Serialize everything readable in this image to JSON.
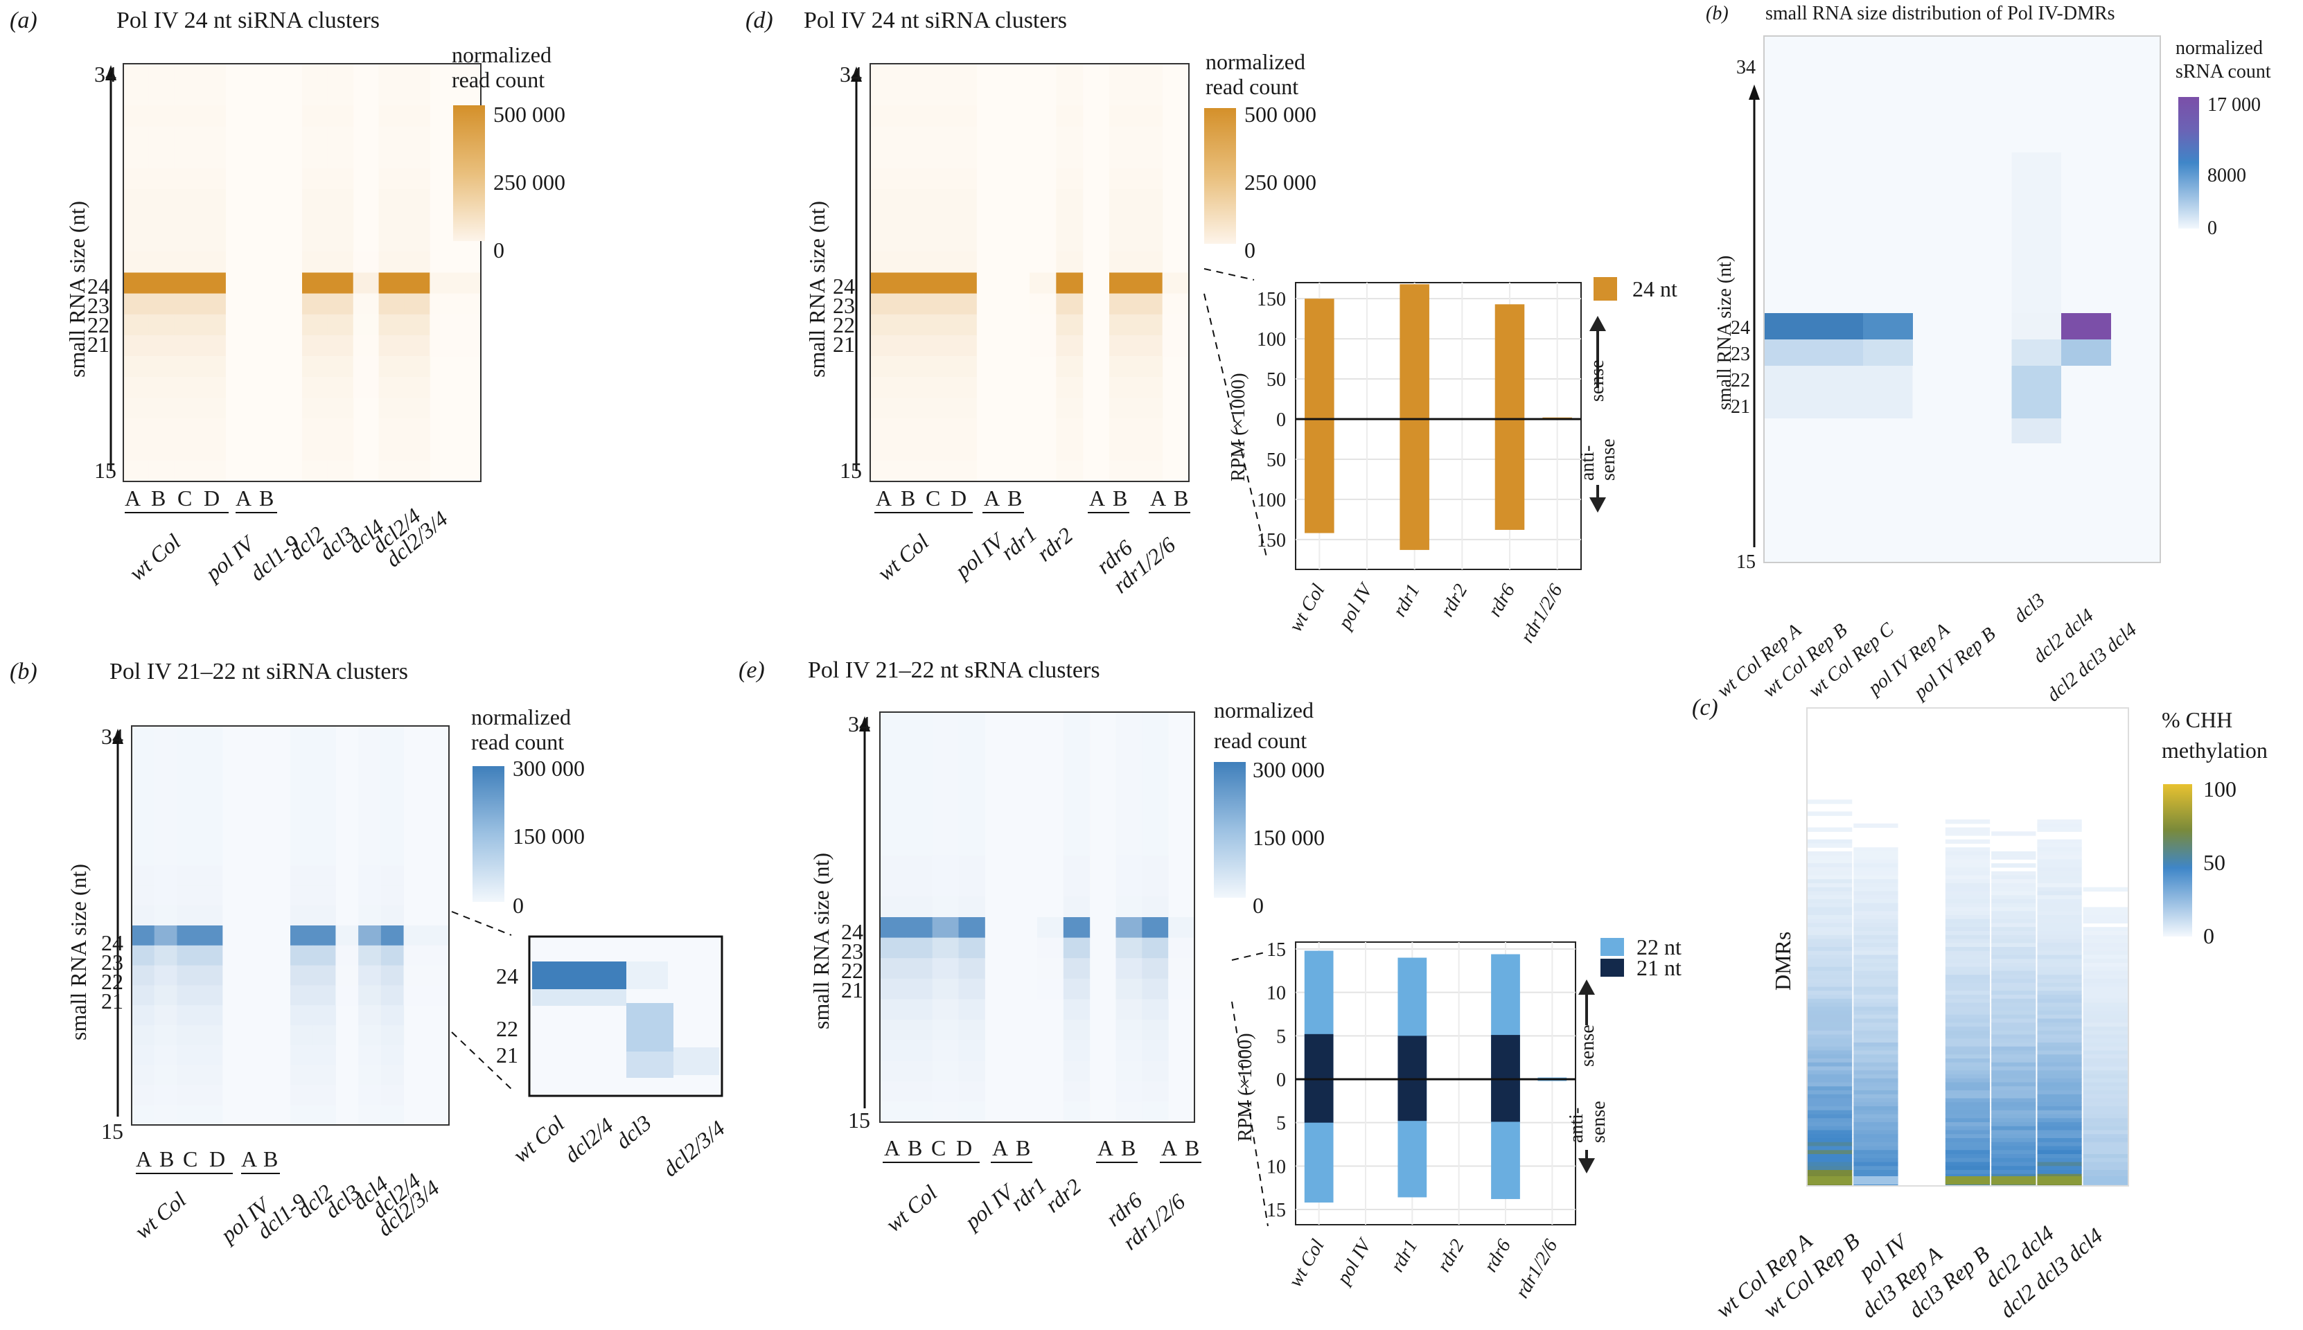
{
  "page": {
    "background": "#ffffff"
  },
  "panels": {
    "a": {
      "label": "(a)",
      "title": "Pol IV 24 nt siRNA clusters"
    },
    "b": {
      "label": "(b)",
      "title": "Pol IV 21–22 nt siRNA clusters"
    },
    "d": {
      "label": "(d)",
      "title": "Pol IV 24 nt siRNA clusters"
    },
    "e": {
      "label": "(e)",
      "title": "Pol IV 21–22 nt sRNA clusters"
    },
    "rb": {
      "label": "(b)",
      "title": "small RNA size distribution of Pol IV-DMRs"
    },
    "rc": {
      "label": "(c)"
    }
  },
  "common": {
    "ylabel": "small RNA size (nt)",
    "ytick_top": "34",
    "ytick_bottom": "15",
    "yticks_mid": [
      "24",
      "23",
      "22",
      "21"
    ],
    "legend_title_1": "normalized",
    "legend_title_2": "read count",
    "rep_letters_4": [
      "A",
      "B",
      "C",
      "D"
    ],
    "rep_letters_2": [
      "A",
      "B"
    ],
    "rpm_label": "RPM (×1000)",
    "sense": "sense",
    "antisense_1": "anti-",
    "antisense_2": "sense"
  },
  "genotypes_ab": [
    "wt Col",
    "pol IV",
    "dcl1-9",
    "dcl2",
    "dcl3",
    "dcl4",
    "dcl2/4",
    "dcl2/3/4"
  ],
  "genotypes_de": [
    "wt Col",
    "pol IV",
    "rdr1",
    "rdr2",
    "rdr6",
    "rdr1/2/6"
  ],
  "legend_a": {
    "max": "500 000",
    "mid": "250 000",
    "min": "0"
  },
  "legend_b": {
    "max": "300 000",
    "mid": "150 000",
    "min": "0"
  },
  "legend_d": {
    "max": "500 000",
    "mid": "250 000",
    "min": "0"
  },
  "legend_e": {
    "max": "300 000",
    "mid": "150 000",
    "min": "0"
  },
  "inset_b": {
    "yticks": [
      "24",
      "22",
      "21"
    ],
    "columns": [
      "wt Col",
      "dcl2/4",
      "dcl3",
      "dcl2/3/4"
    ]
  },
  "right_b": {
    "legend_title_1": "normalized",
    "legend_title_2": "sRNA count",
    "legend_max": "17 000",
    "legend_mid": "8000",
    "legend_min": "0",
    "columns": [
      "wt Col Rep A",
      "wt Col Rep B",
      "wt Col Rep C",
      "pol IV Rep A",
      "pol IV Rep B",
      "dcl3",
      "dcl2 dcl4",
      "dcl2 dcl3 dcl4"
    ]
  },
  "right_c": {
    "ylabel": "DMRs",
    "legend_title_1": "% CHH",
    "legend_title_2": "methylation",
    "legend_max": "100",
    "legend_mid": "50",
    "legend_min": "0",
    "columns": [
      "wt Col Rep A",
      "wt Col Rep B",
      "pol IV",
      "dcl3 Rep A",
      "dcl3 Rep B",
      "dcl2 dcl4",
      "dcl2 dcl3 dcl4"
    ]
  },
  "colors": {
    "orange": "#d4902a",
    "blue": "#3f7fbb",
    "purple": "#7b4fa8",
    "light_blue": "#6aaee0",
    "navy": "#13294b",
    "yellow": "#e8c230",
    "olive": "#7a8a3a"
  },
  "chart_data": [
    {
      "id": "d-bar",
      "type": "bar",
      "title": "",
      "categories": [
        "wt Col",
        "pol IV",
        "rdr1",
        "rdr2",
        "rdr6",
        "rdr1/2/6"
      ],
      "series": [
        {
          "name": "24 nt sense",
          "values": [
            150,
            0,
            168,
            0,
            143,
            2
          ]
        },
        {
          "name": "24 nt antisense",
          "values": [
            142,
            0,
            163,
            0,
            138,
            1
          ]
        }
      ],
      "legend": [
        "24 nt"
      ],
      "ylabel": "RPM (×1000)",
      "ylim": [
        -170,
        170
      ],
      "yticks": [
        150,
        100,
        50,
        0,
        50,
        100,
        150
      ]
    },
    {
      "id": "e-bar",
      "type": "bar",
      "title": "",
      "categories": [
        "wt Col",
        "pol IV",
        "rdr1",
        "rdr2",
        "rdr6",
        "rdr1/2/6"
      ],
      "series": [
        {
          "name": "22 nt sense",
          "values": [
            14.8,
            0.1,
            14.0,
            0.1,
            14.4,
            0.2
          ]
        },
        {
          "name": "21 nt sense",
          "values": [
            5.2,
            0.1,
            5.0,
            0.1,
            5.1,
            0.1
          ]
        },
        {
          "name": "22 nt antisense",
          "values": [
            14.2,
            0.1,
            13.6,
            0.1,
            13.8,
            0.2
          ]
        },
        {
          "name": "21 nt antisense",
          "values": [
            5.0,
            0.1,
            4.8,
            0.1,
            4.9,
            0.1
          ]
        }
      ],
      "legend": [
        "22 nt",
        "21 nt"
      ],
      "ylabel": "RPM (×1000)",
      "ylim": [
        -16,
        16
      ],
      "yticks": [
        15,
        10,
        5,
        0,
        5,
        10,
        15
      ]
    }
  ]
}
